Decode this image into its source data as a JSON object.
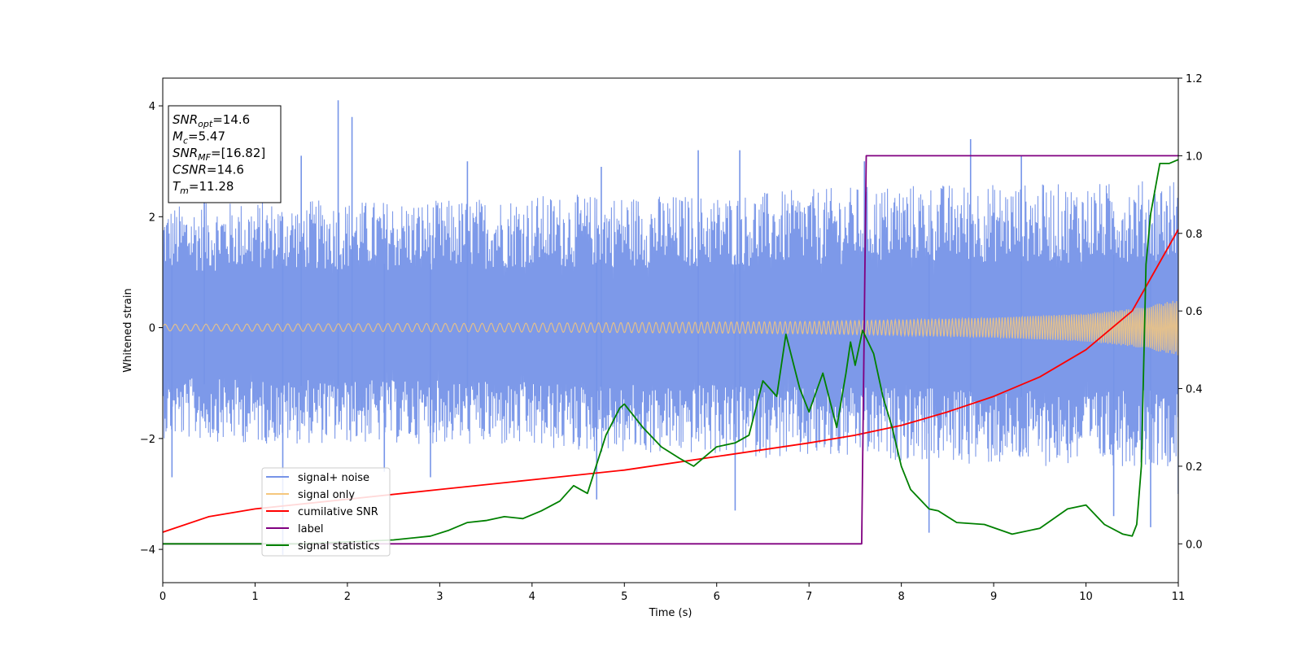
{
  "chart_data": {
    "type": "line",
    "xlabel": "Time (s)",
    "ylabel": "Whitened strain",
    "xlim": [
      0,
      11
    ],
    "ylim_left": [
      -4.6,
      4.5
    ],
    "ylim_right": [
      -0.1,
      1.2
    ],
    "x_ticks": [
      0,
      1,
      2,
      3,
      4,
      5,
      6,
      7,
      8,
      9,
      10,
      11
    ],
    "y_ticks_left": [
      -4,
      -2,
      0,
      2,
      4
    ],
    "y_ticks_right": [
      0.0,
      0.2,
      0.4,
      0.6,
      0.8,
      1.0,
      1.2
    ],
    "x_tick_labels": [
      "0",
      "1",
      "2",
      "3",
      "4",
      "5",
      "6",
      "7",
      "8",
      "9",
      "10",
      "11"
    ],
    "y_tick_labels_left": [
      "−4",
      "−2",
      "0",
      "2",
      "4"
    ],
    "y_tick_labels_right": [
      "0.0",
      "0.2",
      "0.4",
      "0.6",
      "0.8",
      "1.0",
      "1.2"
    ],
    "grid": false,
    "legend_position": "lower-left",
    "annotation": [
      {
        "sym": "SNR",
        "sub": "opt",
        "value": "=14.6"
      },
      {
        "sym": "M",
        "sub": "c",
        "value": "=5.47"
      },
      {
        "sym": "SNR",
        "sub": "MF",
        "value": "=[16.82]"
      },
      {
        "sym": "CSNR",
        "sub": "",
        "value": "=14.6"
      },
      {
        "sym": "T",
        "sub": "m",
        "value": "=11.28"
      }
    ],
    "series": [
      {
        "name": "signal+ noise",
        "axis": "left",
        "color": "#7694e8",
        "style": "noise-band",
        "envelope_x": [
          0,
          1,
          2,
          3,
          4,
          5,
          6,
          7,
          8,
          9,
          10,
          11
        ],
        "envelope_upper": [
          2.2,
          2.3,
          2.3,
          2.3,
          2.4,
          2.4,
          2.4,
          2.5,
          2.6,
          2.6,
          2.6,
          2.7
        ],
        "envelope_lower": [
          -2.0,
          -2.1,
          -2.1,
          -2.1,
          -2.2,
          -2.3,
          -2.3,
          -2.4,
          -2.4,
          -2.5,
          -2.5,
          -2.5
        ],
        "spikes": [
          [
            0.1,
            -2.7
          ],
          [
            0.45,
            2.6
          ],
          [
            1.3,
            -4.1
          ],
          [
            1.5,
            3.1
          ],
          [
            1.9,
            4.1
          ],
          [
            2.05,
            3.8
          ],
          [
            2.4,
            -2.6
          ],
          [
            2.9,
            -2.7
          ],
          [
            3.3,
            3.0
          ],
          [
            4.7,
            -3.1
          ],
          [
            4.75,
            2.9
          ],
          [
            5.8,
            3.2
          ],
          [
            6.2,
            -3.3
          ],
          [
            6.25,
            3.2
          ],
          [
            7.6,
            3.0
          ],
          [
            8.3,
            -3.7
          ],
          [
            8.75,
            3.4
          ],
          [
            9.3,
            3.1
          ],
          [
            10.3,
            -3.4
          ],
          [
            10.7,
            -3.6
          ],
          [
            11.0,
            -3.0
          ]
        ]
      },
      {
        "name": "signal only",
        "axis": "left",
        "color": "#f5c77d",
        "style": "chirp",
        "envelope_x": [
          0,
          2,
          4,
          6,
          7,
          8,
          9,
          10,
          10.5,
          11
        ],
        "envelope_amp": [
          0.06,
          0.07,
          0.08,
          0.1,
          0.11,
          0.14,
          0.18,
          0.25,
          0.34,
          0.5
        ]
      },
      {
        "name": "cumilative SNR",
        "axis": "right",
        "color": "#ff0000",
        "x": [
          0,
          0.5,
          1,
          2,
          3,
          4,
          5,
          6,
          7,
          7.5,
          8,
          8.5,
          9,
          9.5,
          10,
          10.5,
          11
        ],
        "y": [
          0.03,
          0.07,
          0.09,
          0.115,
          0.14,
          0.165,
          0.19,
          0.225,
          0.26,
          0.28,
          0.305,
          0.34,
          0.38,
          0.43,
          0.5,
          0.6,
          0.81
        ]
      },
      {
        "name": "label",
        "axis": "right",
        "color": "#800080",
        "x": [
          0,
          7.57,
          7.62,
          11
        ],
        "y": [
          0,
          0,
          1,
          1
        ]
      },
      {
        "name": "signal statistics",
        "axis": "right",
        "color": "#008000",
        "x": [
          0,
          0.5,
          1,
          1.5,
          2,
          2.5,
          2.9,
          3.1,
          3.3,
          3.5,
          3.7,
          3.9,
          4.1,
          4.3,
          4.45,
          4.6,
          4.8,
          4.95,
          5.0,
          5.2,
          5.4,
          5.6,
          5.75,
          5.9,
          6.0,
          6.2,
          6.35,
          6.5,
          6.65,
          6.75,
          6.9,
          7.0,
          7.15,
          7.3,
          7.4,
          7.45,
          7.5,
          7.58,
          7.7,
          7.8,
          7.9,
          8.0,
          8.1,
          8.3,
          8.4,
          8.6,
          8.9,
          9.2,
          9.5,
          9.8,
          10.0,
          10.2,
          10.4,
          10.5,
          10.55,
          10.6,
          10.65,
          10.7,
          10.8,
          10.9,
          11.0
        ],
        "y": [
          0.0,
          0.0,
          0.0,
          0.0,
          0.005,
          0.01,
          0.02,
          0.035,
          0.055,
          0.06,
          0.07,
          0.065,
          0.085,
          0.11,
          0.15,
          0.13,
          0.28,
          0.35,
          0.36,
          0.3,
          0.25,
          0.22,
          0.2,
          0.23,
          0.25,
          0.26,
          0.28,
          0.42,
          0.38,
          0.54,
          0.4,
          0.34,
          0.44,
          0.3,
          0.44,
          0.52,
          0.46,
          0.55,
          0.49,
          0.38,
          0.3,
          0.2,
          0.14,
          0.09,
          0.085,
          0.055,
          0.05,
          0.025,
          0.04,
          0.09,
          0.1,
          0.05,
          0.025,
          0.02,
          0.05,
          0.2,
          0.72,
          0.85,
          0.98,
          0.98,
          0.99
        ]
      }
    ]
  }
}
